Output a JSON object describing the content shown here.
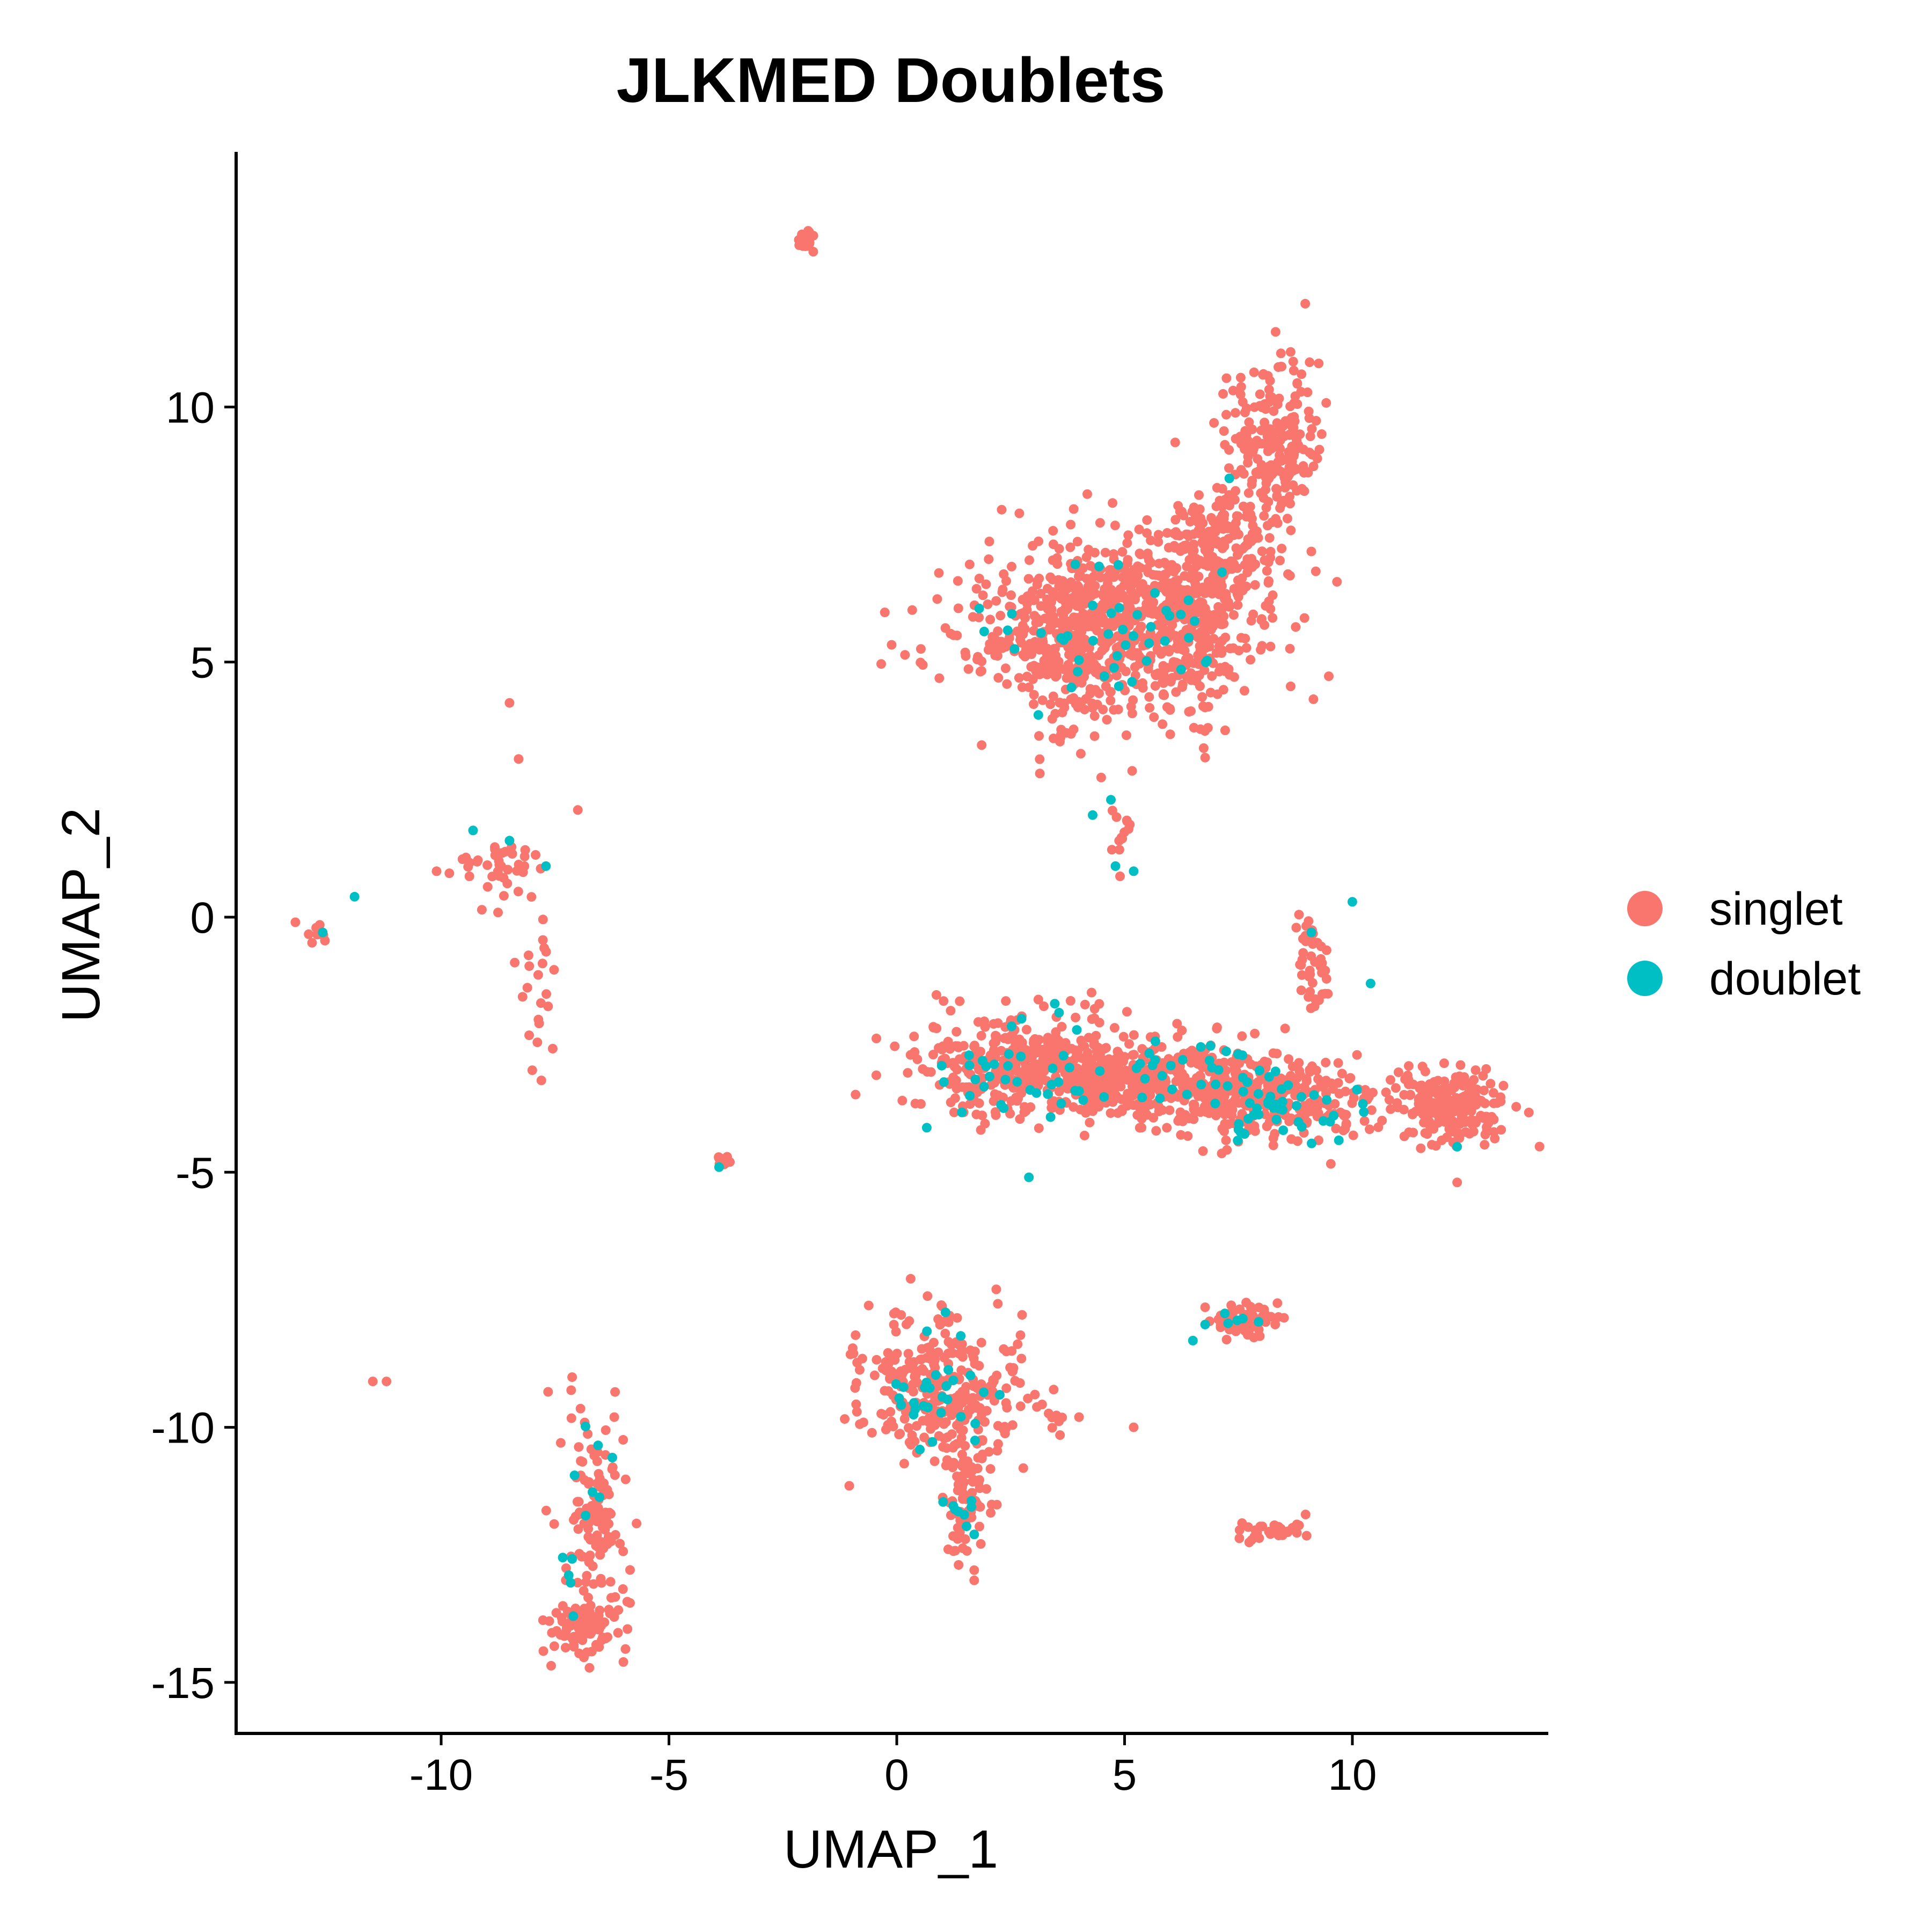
{
  "chart_data": {
    "type": "scatter",
    "title": "JLKMED Doublets",
    "xlabel": "UMAP_1",
    "ylabel": "UMAP_2",
    "xlim": [
      -14.5,
      14.3
    ],
    "ylim": [
      -16,
      15
    ],
    "xticks": [
      -10,
      -5,
      0,
      5,
      10
    ],
    "yticks": [
      10,
      5,
      0,
      -5,
      -10,
      -15
    ],
    "xtick_labels": [
      "-10",
      "-5",
      "0",
      "5",
      "10"
    ],
    "ytick_labels": [
      "10",
      "5",
      "0",
      "-5",
      "-10",
      "-15"
    ],
    "grid": false,
    "legend_position": "right",
    "series": [
      {
        "name": "singlet",
        "color": "#F8766D",
        "clusters": [
          {
            "cx": 4.8,
            "cy": 5.8,
            "sx": 1.7,
            "sy": 0.8,
            "n": 700
          },
          {
            "cx": 3.8,
            "cy": 5.0,
            "sx": 0.6,
            "sy": 0.9,
            "n": 120
          },
          {
            "cx": 6.4,
            "cy": 5.2,
            "sx": 0.5,
            "sy": 0.9,
            "n": 120
          },
          {
            "cx": 7.0,
            "cy": 7.3,
            "sx": 0.7,
            "sy": 0.6,
            "n": 200
          },
          {
            "cx": 8.3,
            "cy": 9.3,
            "sx": 0.5,
            "sy": 0.8,
            "n": 200
          },
          {
            "cx": 3.0,
            "cy": -2.9,
            "sx": 1.3,
            "sy": 0.5,
            "n": 400
          },
          {
            "cx": 5.5,
            "cy": -3.2,
            "sx": 1.5,
            "sy": 0.35,
            "n": 350
          },
          {
            "cx": 8.2,
            "cy": -3.6,
            "sx": 1.2,
            "sy": 0.4,
            "n": 300
          },
          {
            "cx": 12.2,
            "cy": -3.7,
            "sx": 0.6,
            "sy": 0.35,
            "n": 220
          },
          {
            "cx": 9.2,
            "cy": -1.0,
            "sx": 0.2,
            "sy": 0.5,
            "n": 40
          },
          {
            "cx": 1.0,
            "cy": -9.2,
            "sx": 0.9,
            "sy": 0.7,
            "n": 300
          },
          {
            "cx": 1.5,
            "cy": -11.3,
            "sx": 0.25,
            "sy": 0.6,
            "n": 90
          },
          {
            "cx": -6.7,
            "cy": -11.8,
            "sx": 0.35,
            "sy": 1.0,
            "n": 120
          },
          {
            "cx": -6.9,
            "cy": -13.9,
            "sx": 0.4,
            "sy": 0.3,
            "n": 80
          },
          {
            "cx": 7.6,
            "cy": -7.9,
            "sx": 0.4,
            "sy": 0.15,
            "n": 60
          },
          {
            "cx": 8.2,
            "cy": -12.0,
            "sx": 0.4,
            "sy": 0.12,
            "n": 30
          },
          {
            "cx": -8.8,
            "cy": 1.0,
            "sx": 0.5,
            "sy": 0.4,
            "n": 40
          },
          {
            "cx": -7.9,
            "cy": -1.5,
            "sx": 0.2,
            "sy": 0.8,
            "n": 20
          },
          {
            "cx": -2.0,
            "cy": 13.3,
            "sx": 0.1,
            "sy": 0.1,
            "n": 25
          },
          {
            "cx": -3.8,
            "cy": -4.8,
            "sx": 0.08,
            "sy": 0.08,
            "n": 10
          },
          {
            "cx": 4.9,
            "cy": 1.8,
            "sx": 0.1,
            "sy": 0.3,
            "n": 12
          },
          {
            "cx": -12.7,
            "cy": -0.4,
            "sx": 0.1,
            "sy": 0.1,
            "n": 8
          },
          {
            "cx": 3.5,
            "cy": -9.8,
            "sx": 0.2,
            "sy": 0.1,
            "n": 6
          }
        ],
        "points": [
          [
            -8.5,
            4.2
          ],
          [
            -8.3,
            3.1
          ],
          [
            -7.0,
            2.1
          ],
          [
            -10.1,
            0.9
          ],
          [
            -11.2,
            -9.1
          ],
          [
            -11.5,
            -9.1
          ],
          [
            -6.0,
            -14.6
          ],
          [
            4.9,
            0.8
          ],
          [
            5.2,
            -10.0
          ],
          [
            4.0,
            -9.8
          ],
          [
            1.7,
            -12.8
          ],
          [
            1.7,
            -13.0
          ],
          [
            -13.2,
            -0.1
          ],
          [
            -7.8,
            -3.2
          ],
          [
            -8.0,
            -3.0
          ],
          [
            12.3,
            -5.2
          ],
          [
            9.4,
            -1.5
          ],
          [
            -6.2,
            -9.8
          ]
        ]
      },
      {
        "name": "doublet",
        "color": "#00BFC4",
        "clusters": [
          {
            "cx": 4.8,
            "cy": 5.7,
            "sx": 1.3,
            "sy": 0.7,
            "n": 45
          },
          {
            "cx": 3.0,
            "cy": -3.1,
            "sx": 1.0,
            "sy": 0.5,
            "n": 40
          },
          {
            "cx": 6.4,
            "cy": -3.0,
            "sx": 1.2,
            "sy": 0.3,
            "n": 30
          },
          {
            "cx": 8.5,
            "cy": -3.8,
            "sx": 0.9,
            "sy": 0.3,
            "n": 40
          },
          {
            "cx": 0.9,
            "cy": -9.5,
            "sx": 0.6,
            "sy": 0.6,
            "n": 30
          },
          {
            "cx": 1.4,
            "cy": -11.5,
            "sx": 0.15,
            "sy": 0.3,
            "n": 8
          },
          {
            "cx": -6.8,
            "cy": -11.5,
            "sx": 0.3,
            "sy": 0.8,
            "n": 10
          },
          {
            "cx": 7.5,
            "cy": -8.0,
            "sx": 0.4,
            "sy": 0.15,
            "n": 6
          }
        ],
        "points": [
          [
            -11.9,
            0.4
          ],
          [
            -12.6,
            -0.3
          ],
          [
            -9.3,
            1.7
          ],
          [
            -7.7,
            1.0
          ],
          [
            -8.5,
            1.5
          ],
          [
            10.0,
            0.3
          ],
          [
            10.4,
            -1.3
          ],
          [
            9.1,
            -0.3
          ],
          [
            4.3,
            2.0
          ],
          [
            4.7,
            2.3
          ],
          [
            5.2,
            0.9
          ],
          [
            4.8,
            1.0
          ],
          [
            2.9,
            -5.1
          ],
          [
            12.3,
            -4.5
          ],
          [
            -3.9,
            -4.9
          ],
          [
            7.3,
            8.6
          ],
          [
            1.7,
            -12.1
          ],
          [
            -7.1,
            -13.7
          ],
          [
            -7.2,
            -12.9
          ],
          [
            6.5,
            -8.3
          ]
        ]
      }
    ]
  }
}
